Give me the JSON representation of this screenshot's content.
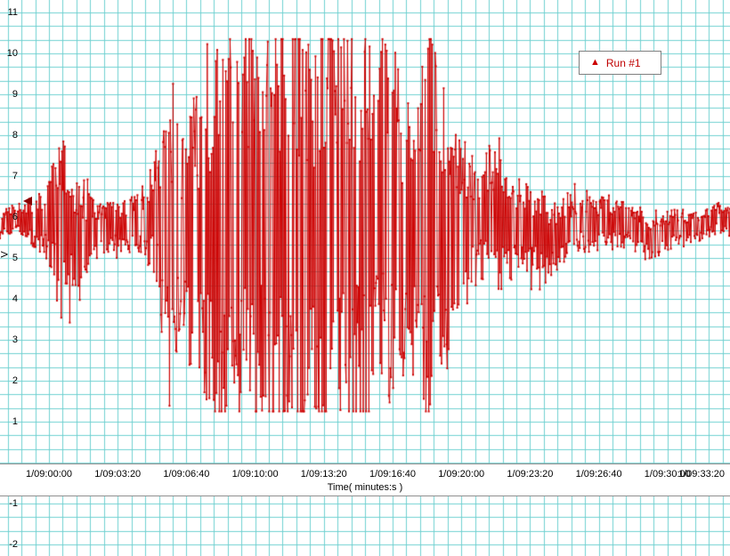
{
  "chart_data": {
    "type": "line",
    "title": "",
    "xlabel": "Time( minutes:s )",
    "ylabel": "V",
    "x_tick_labels": [
      "1/09:00:00",
      "1/09:03:20",
      "1/09:06:40",
      "1/09:10:00",
      "1/09:13:20",
      "1/09:16:40",
      "1/09:20:00",
      "1/09:23:20",
      "1/09:26:40",
      "1/09:30:00",
      "1/09:33:20"
    ],
    "y_tick_values": [
      11,
      10,
      9,
      8,
      7,
      6,
      5,
      4,
      3,
      2,
      1,
      -1,
      -2
    ],
    "ylim": [
      -2,
      11
    ],
    "grid": {
      "on": true,
      "color": "#6fd1d1"
    },
    "legend": {
      "label": "Run #1",
      "position": "top-right",
      "color": "#c00000",
      "marker": "triangle-up-icon"
    },
    "axis_marker": {
      "value": 6.4,
      "color": "#8b0000",
      "shape": "triangle-left-icon"
    },
    "series": [
      {
        "name": "Run #1",
        "color": "#cc0000",
        "marker": "dot",
        "baseline": 5.75,
        "clip_min": 1.25,
        "clip_max": 10.35,
        "seed": 73,
        "envelope_t_amp": [
          [
            0.0,
            0.3
          ],
          [
            0.03,
            0.4
          ],
          [
            0.06,
            0.7
          ],
          [
            0.085,
            2.2
          ],
          [
            0.1,
            1.3
          ],
          [
            0.115,
            1.05
          ],
          [
            0.14,
            0.6
          ],
          [
            0.17,
            0.55
          ],
          [
            0.195,
            0.85
          ],
          [
            0.215,
            1.6
          ],
          [
            0.23,
            3.6
          ],
          [
            0.25,
            2.8
          ],
          [
            0.27,
            3.2
          ],
          [
            0.29,
            4.2
          ],
          [
            0.31,
            5.0
          ],
          [
            0.5,
            5.0
          ],
          [
            0.515,
            3.8
          ],
          [
            0.535,
            4.8
          ],
          [
            0.555,
            3.2
          ],
          [
            0.57,
            2.4
          ],
          [
            0.585,
            4.8
          ],
          [
            0.6,
            4.2
          ],
          [
            0.62,
            2.6
          ],
          [
            0.645,
            1.6
          ],
          [
            0.67,
            1.7
          ],
          [
            0.695,
            1.3
          ],
          [
            0.73,
            1.0
          ],
          [
            0.77,
            0.85
          ],
          [
            0.81,
            0.7
          ],
          [
            0.85,
            0.6
          ],
          [
            0.89,
            0.5
          ],
          [
            0.93,
            0.42
          ],
          [
            0.965,
            0.33
          ],
          [
            1.0,
            0.38
          ]
        ]
      }
    ]
  }
}
